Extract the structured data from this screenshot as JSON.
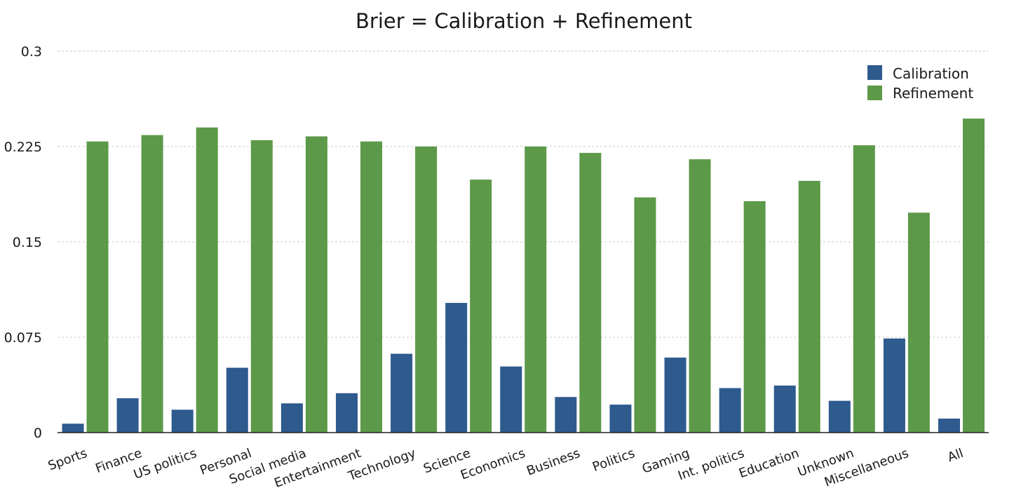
{
  "chart_data": {
    "type": "bar",
    "title": "Brier = Calibration + Refinement",
    "xlabel": "",
    "ylabel": "",
    "ylim": [
      0,
      0.3
    ],
    "yticks": [
      0,
      0.075,
      0.15,
      0.225,
      0.3
    ],
    "ytick_labels": [
      "0",
      "0.075",
      "0.15",
      "0.225",
      "0.3"
    ],
    "grid": true,
    "legend_position": "top-right",
    "categories": [
      "Sports",
      "Finance",
      "US politics",
      "Personal",
      "Social media",
      "Entertainment",
      "Technology",
      "Science",
      "Economics",
      "Business",
      "Politics",
      "Gaming",
      "Int. politics",
      "Education",
      "Unknown",
      "Miscellaneous",
      "All"
    ],
    "series": [
      {
        "name": "Calibration",
        "color": "#2e5a8e",
        "values": [
          0.007,
          0.027,
          0.018,
          0.051,
          0.023,
          0.031,
          0.062,
          0.102,
          0.052,
          0.028,
          0.022,
          0.059,
          0.035,
          0.037,
          0.025,
          0.074,
          0.011
        ]
      },
      {
        "name": "Refinement",
        "color": "#5c9948",
        "values": [
          0.229,
          0.234,
          0.24,
          0.23,
          0.233,
          0.229,
          0.225,
          0.199,
          0.225,
          0.22,
          0.185,
          0.215,
          0.182,
          0.198,
          0.226,
          0.173,
          0.247
        ]
      }
    ]
  }
}
